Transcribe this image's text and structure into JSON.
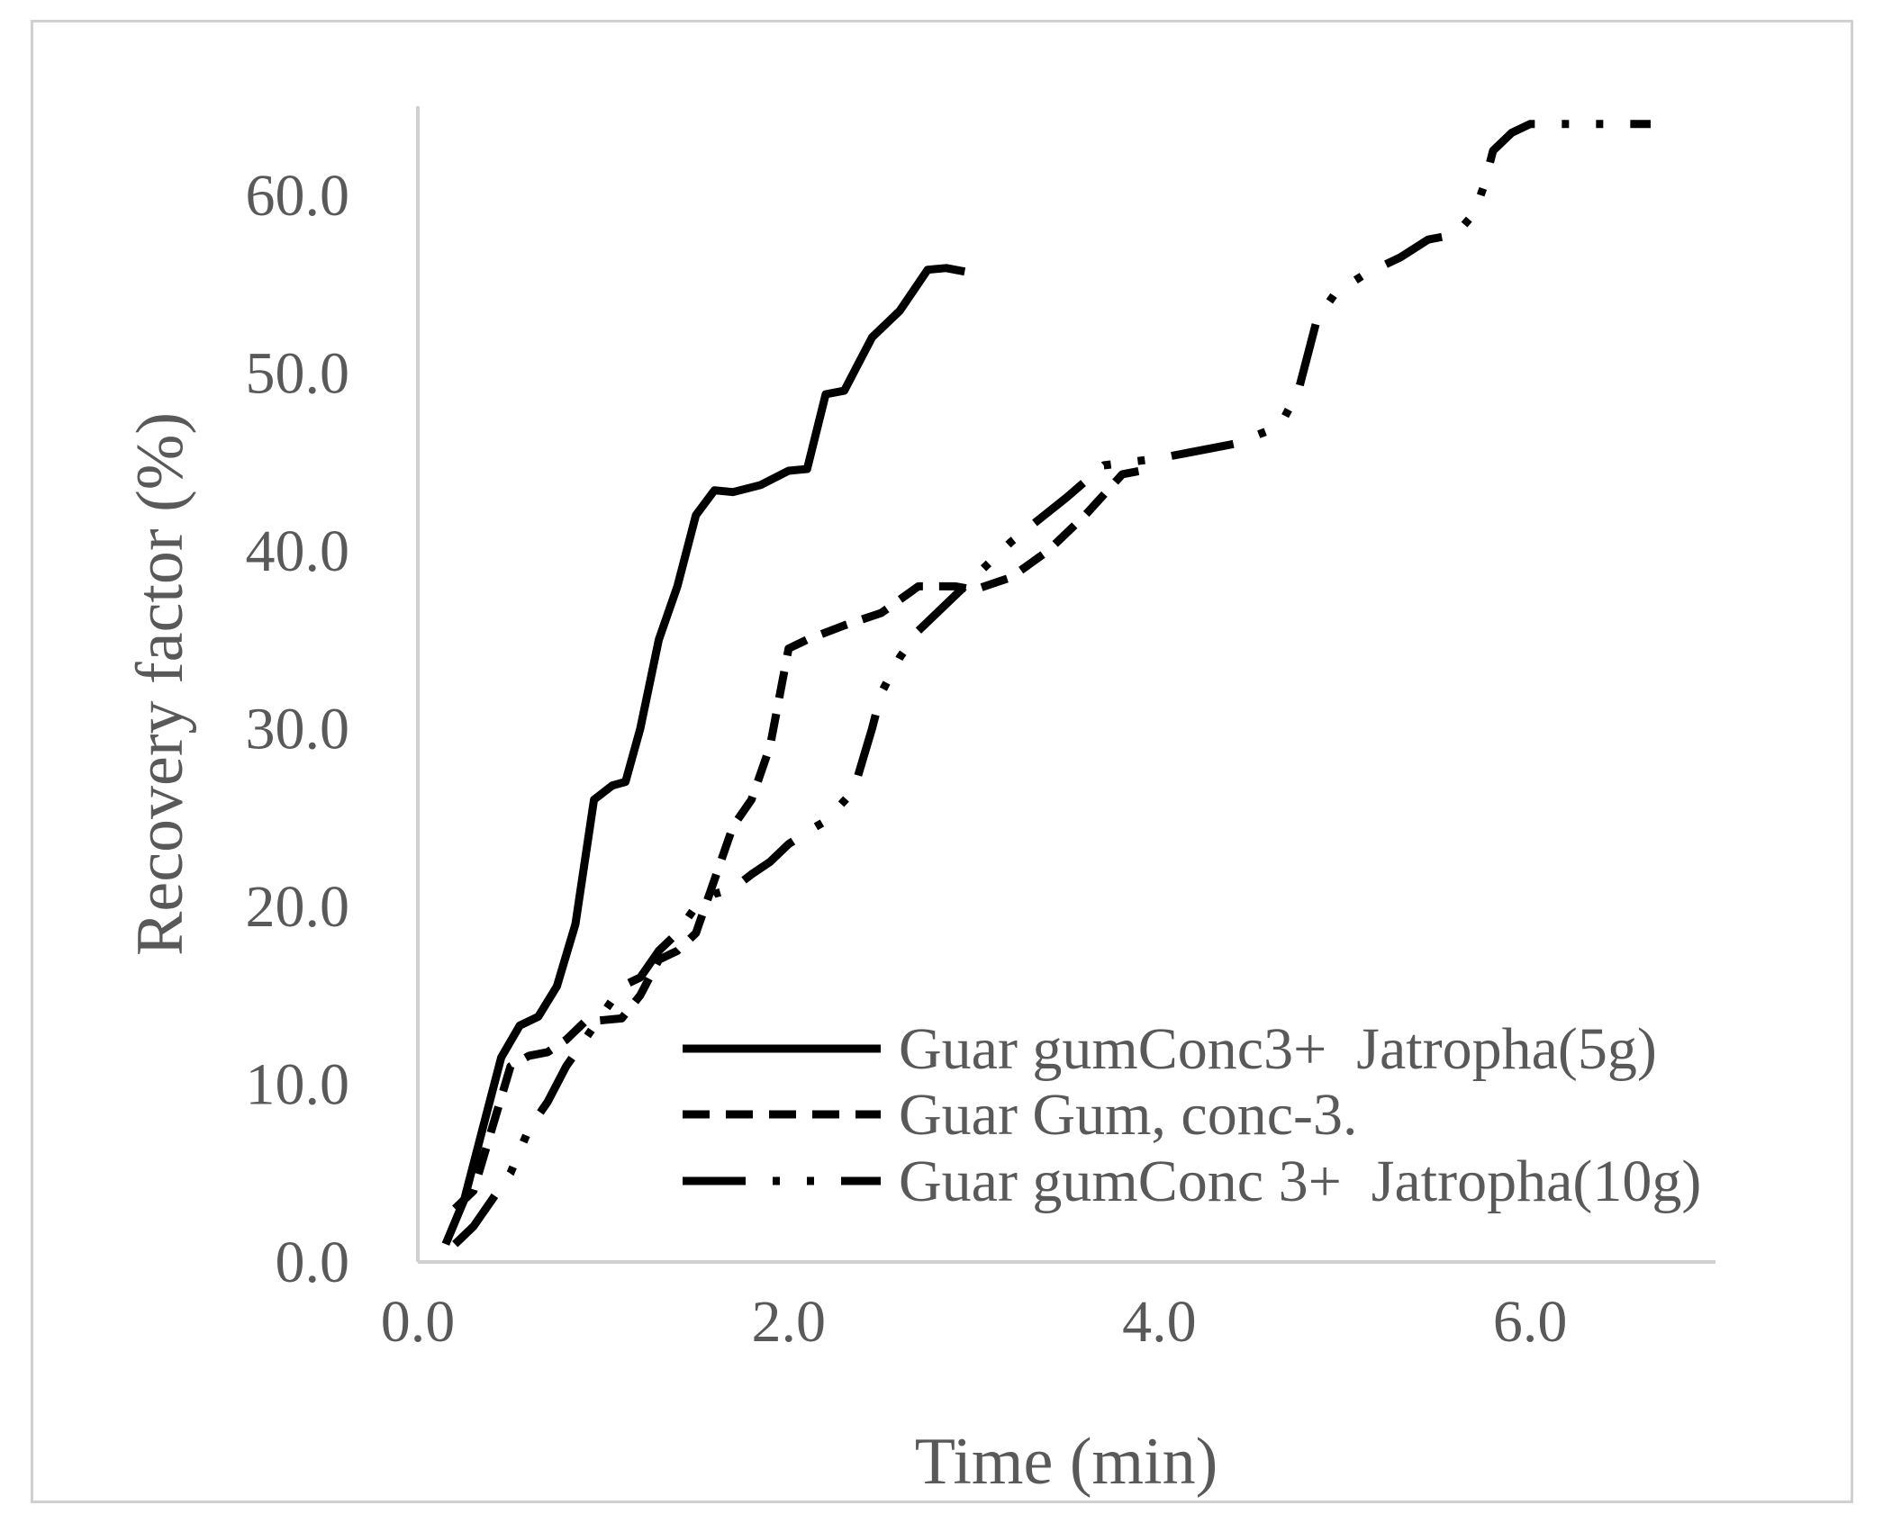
{
  "chart_data": {
    "type": "line",
    "title": "",
    "xlabel": "Time (min)",
    "ylabel": "Recovery factor (%)",
    "xlim": [
      0,
      7
    ],
    "ylim": [
      0,
      65
    ],
    "x_ticks": [
      "0.0",
      "2.0",
      "4.0",
      "6.0"
    ],
    "y_ticks": [
      "0.0",
      "10.0",
      "20.0",
      "30.0",
      "40.0",
      "50.0",
      "60.0"
    ],
    "grid": false,
    "legend_position": "bottom-right",
    "series": [
      {
        "name": "Guar gumConc3+  Jatropha(5g)",
        "style": "solid",
        "points": [
          [
            0.15,
            1.0
          ],
          [
            0.25,
            3.5
          ],
          [
            0.35,
            7.5
          ],
          [
            0.45,
            11.5
          ],
          [
            0.55,
            13.3
          ],
          [
            0.65,
            13.8
          ],
          [
            0.75,
            15.5
          ],
          [
            0.85,
            19.0
          ],
          [
            0.95,
            26.0
          ],
          [
            1.05,
            26.8
          ],
          [
            1.12,
            27.0
          ],
          [
            1.2,
            30.0
          ],
          [
            1.3,
            35.0
          ],
          [
            1.4,
            38.0
          ],
          [
            1.5,
            42.0
          ],
          [
            1.6,
            43.4
          ],
          [
            1.7,
            43.3
          ],
          [
            1.85,
            43.7
          ],
          [
            2.0,
            44.5
          ],
          [
            2.1,
            44.6
          ],
          [
            2.2,
            48.8
          ],
          [
            2.3,
            49.0
          ],
          [
            2.45,
            52.0
          ],
          [
            2.6,
            53.5
          ],
          [
            2.75,
            55.8
          ],
          [
            2.85,
            55.9
          ],
          [
            2.95,
            55.7
          ]
        ]
      },
      {
        "name": "Guar Gum, conc-3.",
        "style": "dashed",
        "points": [
          [
            0.2,
            3.0
          ],
          [
            0.3,
            4.0
          ],
          [
            0.4,
            7.5
          ],
          [
            0.5,
            11.0
          ],
          [
            0.6,
            11.6
          ],
          [
            0.7,
            11.8
          ],
          [
            0.8,
            12.5
          ],
          [
            0.9,
            13.5
          ],
          [
            1.0,
            13.6
          ],
          [
            1.1,
            13.7
          ],
          [
            1.2,
            15.0
          ],
          [
            1.3,
            17.0
          ],
          [
            1.4,
            17.5
          ],
          [
            1.5,
            18.5
          ],
          [
            1.6,
            21.5
          ],
          [
            1.7,
            24.5
          ],
          [
            1.8,
            26.0
          ],
          [
            1.9,
            29.0
          ],
          [
            2.0,
            34.5
          ],
          [
            2.1,
            35.0
          ],
          [
            2.3,
            35.8
          ],
          [
            2.5,
            36.5
          ],
          [
            2.7,
            38.0
          ],
          [
            2.9,
            38.0
          ],
          [
            3.0,
            37.8
          ],
          [
            3.2,
            38.5
          ],
          [
            3.4,
            40.0
          ],
          [
            3.6,
            42.0
          ],
          [
            3.8,
            44.3
          ],
          [
            3.9,
            44.5
          ]
        ]
      },
      {
        "name": "Guar gumConc 3+  Jatropha(10g)",
        "style": "dash-dot-dot",
        "points": [
          [
            0.2,
            1.0
          ],
          [
            0.3,
            2.0
          ],
          [
            0.4,
            3.5
          ],
          [
            0.5,
            5.0
          ],
          [
            0.6,
            7.5
          ],
          [
            0.7,
            9.0
          ],
          [
            0.8,
            11.0
          ],
          [
            0.9,
            12.5
          ],
          [
            1.0,
            14.0
          ],
          [
            1.1,
            15.5
          ],
          [
            1.2,
            16.0
          ],
          [
            1.3,
            17.5
          ],
          [
            1.4,
            18.5
          ],
          [
            1.5,
            20.0
          ],
          [
            1.6,
            20.7
          ],
          [
            1.7,
            21.0
          ],
          [
            1.8,
            21.8
          ],
          [
            1.9,
            22.5
          ],
          [
            2.0,
            23.5
          ],
          [
            2.1,
            24.2
          ],
          [
            2.2,
            24.8
          ],
          [
            2.35,
            26.5
          ],
          [
            2.45,
            30.0
          ],
          [
            2.5,
            32.0
          ],
          [
            2.6,
            34.0
          ],
          [
            2.7,
            35.5
          ],
          [
            2.8,
            36.5
          ],
          [
            3.0,
            38.5
          ],
          [
            3.2,
            40.5
          ],
          [
            3.5,
            43.0
          ],
          [
            3.7,
            44.8
          ],
          [
            3.85,
            45.0
          ],
          [
            4.0,
            45.2
          ],
          [
            4.15,
            45.5
          ],
          [
            4.4,
            46.0
          ],
          [
            4.65,
            47.0
          ],
          [
            4.75,
            49.0
          ],
          [
            4.8,
            51.0
          ],
          [
            4.85,
            53.0
          ],
          [
            4.95,
            54.5
          ],
          [
            5.1,
            55.5
          ],
          [
            5.3,
            56.5
          ],
          [
            5.45,
            57.5
          ],
          [
            5.6,
            57.8
          ],
          [
            5.7,
            59.0
          ],
          [
            5.75,
            60.5
          ],
          [
            5.8,
            62.5
          ],
          [
            5.9,
            63.5
          ],
          [
            6.0,
            64.0
          ],
          [
            6.3,
            64.0
          ],
          [
            6.65,
            64.0
          ]
        ]
      }
    ]
  }
}
